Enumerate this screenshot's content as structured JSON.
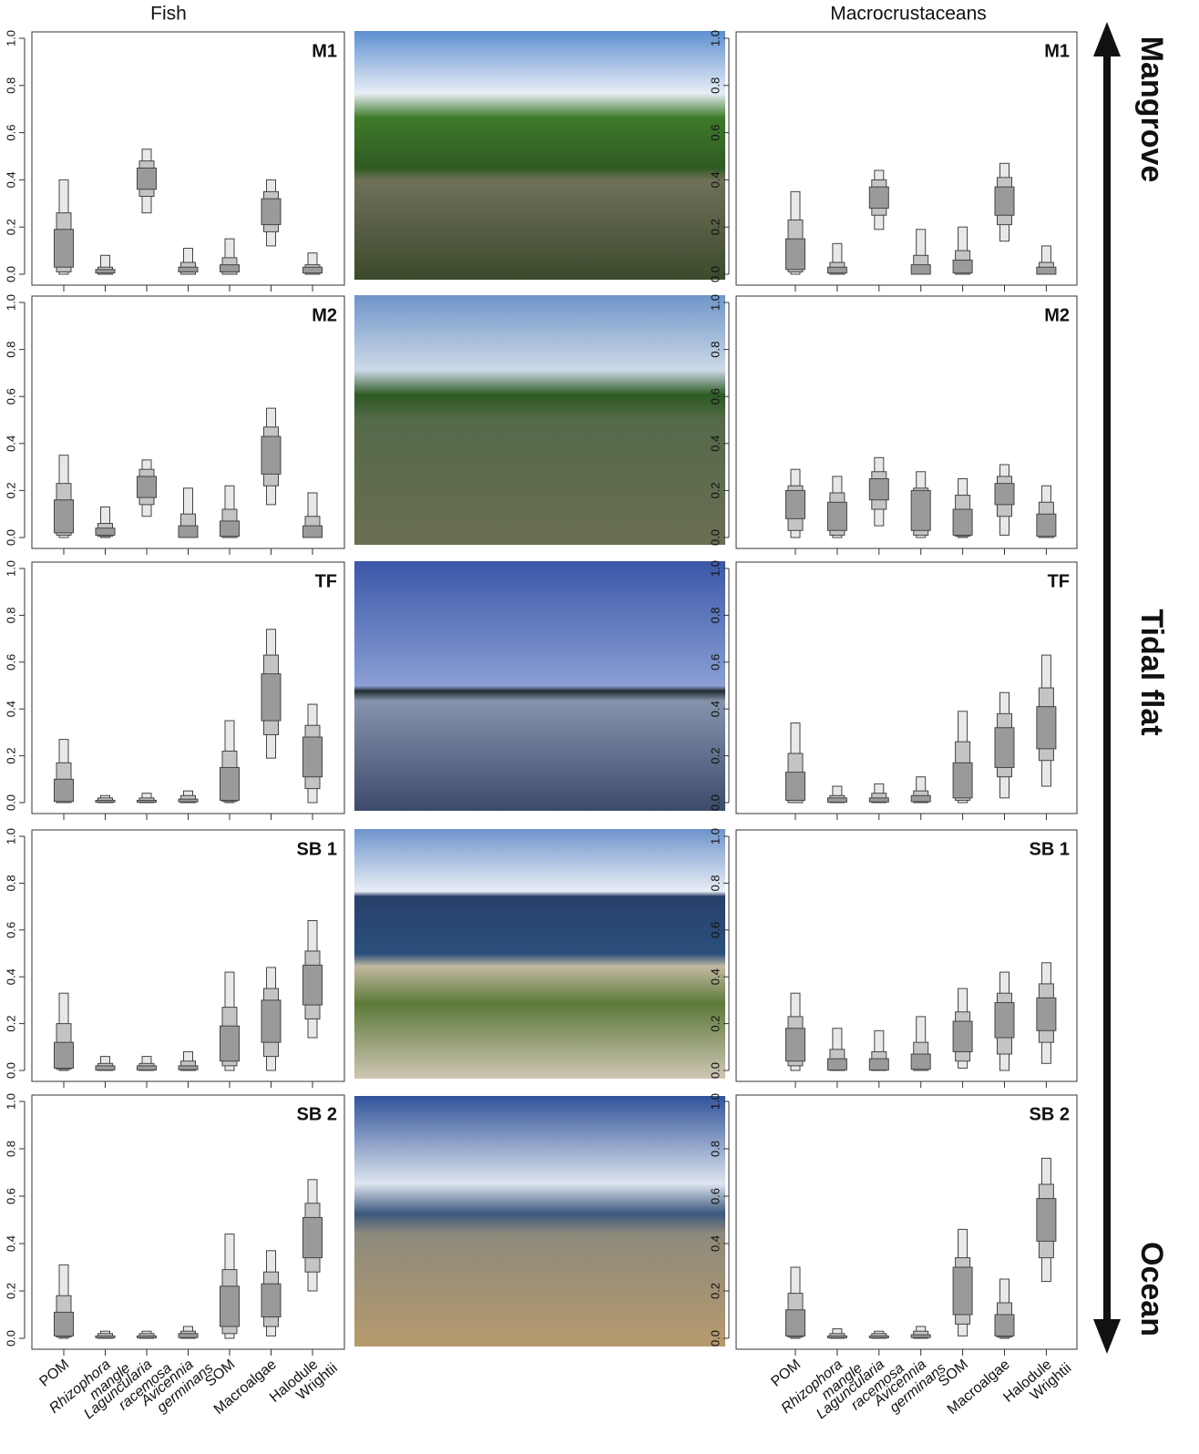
{
  "columns": [
    "Fish",
    "Macrocrustaceans"
  ],
  "gradient_labels": [
    "Mangrove",
    "Tidal flat",
    "Ocean"
  ],
  "categories": [
    [
      "POM"
    ],
    [
      "Rhizophora",
      "mangle"
    ],
    [
      "Laguncularia",
      "racemosa"
    ],
    [
      "Avicennia",
      "germinans"
    ],
    [
      "SOM"
    ],
    [
      "Macroalgae"
    ],
    [
      "Halodule",
      "Wrightii"
    ]
  ],
  "italic": [
    false,
    true,
    true,
    true,
    false,
    false,
    false
  ],
  "colors": [
    "#e8e8e8",
    "#c4c4c4",
    "#9a9a9a"
  ],
  "chart_data": [
    {
      "type": "interval",
      "title": "M1",
      "ylim": [
        0,
        1
      ],
      "yticks": [
        {
          "value": 0,
          "label": "0.0"
        },
        0.2,
        0.4,
        0.6,
        0.8,
        {
          "value": 1,
          "label": "1.0"
        }
      ],
      "intervals": [
        [
          0,
          0.01,
          0.03,
          0.19,
          0.26,
          0.4
        ],
        [
          0,
          0,
          0.005,
          0.02,
          0.03,
          0.08
        ],
        [
          0.26,
          0.33,
          0.36,
          0.45,
          0.48,
          0.53
        ],
        [
          0,
          0,
          0.01,
          0.03,
          0.05,
          0.11
        ],
        [
          0,
          0,
          0.01,
          0.04,
          0.07,
          0.15
        ],
        [
          0.12,
          0.18,
          0.21,
          0.32,
          0.35,
          0.4
        ],
        [
          0,
          0,
          0.005,
          0.03,
          0.04,
          0.09
        ]
      ]
    },
    {
      "type": "interval",
      "title": "M2",
      "ylim": [
        0,
        1
      ],
      "yticks": [
        {
          "value": 0,
          "label": "0.0"
        },
        0.2,
        0.4,
        0.6,
        0.8,
        {
          "value": 1,
          "label": "1.0"
        }
      ],
      "intervals": [
        [
          0,
          0.01,
          0.02,
          0.16,
          0.23,
          0.35
        ],
        [
          0,
          0.005,
          0.01,
          0.04,
          0.06,
          0.13
        ],
        [
          0.09,
          0.14,
          0.17,
          0.26,
          0.29,
          0.33
        ],
        [
          0,
          0,
          0,
          0.05,
          0.1,
          0.21
        ],
        [
          0,
          0,
          0.005,
          0.07,
          0.12,
          0.22
        ],
        [
          0.14,
          0.22,
          0.27,
          0.43,
          0.47,
          0.55
        ],
        [
          0,
          0,
          0,
          0.05,
          0.09,
          0.19
        ]
      ]
    },
    {
      "type": "interval",
      "title": "TF",
      "ylim": [
        0,
        1
      ],
      "yticks": [
        {
          "value": 0,
          "label": "0.0"
        },
        0.2,
        0.4,
        0.6,
        0.8,
        {
          "value": 1,
          "label": "1.0"
        }
      ],
      "intervals": [
        [
          0,
          0,
          0.005,
          0.1,
          0.17,
          0.27
        ],
        [
          0,
          0,
          0.002,
          0.01,
          0.02,
          0.03
        ],
        [
          0,
          0,
          0.002,
          0.01,
          0.02,
          0.04
        ],
        [
          0,
          0,
          0.003,
          0.015,
          0.03,
          0.05
        ],
        [
          0,
          0.005,
          0.01,
          0.15,
          0.22,
          0.35
        ],
        [
          0.19,
          0.29,
          0.35,
          0.55,
          0.63,
          0.74
        ],
        [
          0,
          0.06,
          0.11,
          0.28,
          0.33,
          0.42
        ]
      ]
    },
    {
      "type": "interval",
      "title": "SB 1",
      "ylim": [
        0,
        1
      ],
      "yticks": [
        {
          "value": 0,
          "label": "0.0"
        },
        0.2,
        0.4,
        0.6,
        0.8,
        {
          "value": 1,
          "label": "1.0"
        }
      ],
      "intervals": [
        [
          0,
          0.005,
          0.01,
          0.12,
          0.2,
          0.33
        ],
        [
          0,
          0,
          0.002,
          0.02,
          0.03,
          0.06
        ],
        [
          0,
          0,
          0.002,
          0.02,
          0.03,
          0.06
        ],
        [
          0,
          0,
          0.003,
          0.02,
          0.04,
          0.08
        ],
        [
          0,
          0.02,
          0.04,
          0.19,
          0.27,
          0.42
        ],
        [
          0,
          0.06,
          0.12,
          0.3,
          0.35,
          0.44
        ],
        [
          0.14,
          0.22,
          0.28,
          0.45,
          0.51,
          0.64
        ]
      ]
    },
    {
      "type": "interval",
      "title": "SB 2",
      "ylim": [
        0,
        1
      ],
      "yticks": [
        {
          "value": 0,
          "label": "0.0"
        },
        0.2,
        0.4,
        0.6,
        0.8,
        {
          "value": 1,
          "label": "1.0"
        }
      ],
      "intervals": [
        [
          0,
          0.005,
          0.01,
          0.11,
          0.18,
          0.31
        ],
        [
          0,
          0,
          0.002,
          0.01,
          0.02,
          0.03
        ],
        [
          0,
          0,
          0.002,
          0.01,
          0.02,
          0.03
        ],
        [
          0,
          0,
          0.003,
          0.02,
          0.03,
          0.05
        ],
        [
          0,
          0.02,
          0.05,
          0.22,
          0.29,
          0.44
        ],
        [
          0.01,
          0.05,
          0.09,
          0.23,
          0.28,
          0.37
        ],
        [
          0.2,
          0.28,
          0.34,
          0.51,
          0.57,
          0.67
        ]
      ]
    },
    {
      "type": "interval",
      "title": "M1",
      "ylim": [
        0,
        1
      ],
      "yticks": [
        {
          "value": 0,
          "label": "0.0"
        },
        0.2,
        0.4,
        0.6,
        0.8,
        {
          "value": 1,
          "label": "1.0"
        }
      ],
      "intervals": [
        [
          0,
          0.01,
          0.02,
          0.15,
          0.23,
          0.35
        ],
        [
          0,
          0,
          0.005,
          0.03,
          0.05,
          0.13
        ],
        [
          0.19,
          0.25,
          0.28,
          0.37,
          0.4,
          0.44
        ],
        [
          0,
          0,
          0,
          0.04,
          0.08,
          0.19
        ],
        [
          0,
          0,
          0.005,
          0.06,
          0.1,
          0.2
        ],
        [
          0.14,
          0.21,
          0.25,
          0.37,
          0.41,
          0.47
        ],
        [
          0,
          0,
          0,
          0.03,
          0.05,
          0.12
        ]
      ]
    },
    {
      "type": "interval",
      "title": "M2",
      "ylim": [
        0,
        1
      ],
      "yticks": [
        {
          "value": 0,
          "label": "0.0"
        },
        0.2,
        0.4,
        0.6,
        0.8,
        {
          "value": 1,
          "label": "1.0"
        }
      ],
      "intervals": [
        [
          0,
          0.03,
          0.08,
          0.2,
          0.22,
          0.29
        ],
        [
          0,
          0.01,
          0.03,
          0.15,
          0.19,
          0.26
        ],
        [
          0.05,
          0.12,
          0.16,
          0.25,
          0.28,
          0.34
        ],
        [
          0,
          0.01,
          0.03,
          0.2,
          0.21,
          0.28
        ],
        [
          0,
          0.005,
          0.01,
          0.12,
          0.18,
          0.25
        ],
        [
          0.01,
          0.09,
          0.14,
          0.23,
          0.26,
          0.31
        ],
        [
          0,
          0,
          0.005,
          0.1,
          0.15,
          0.22
        ]
      ]
    },
    {
      "type": "interval",
      "title": "TF",
      "ylim": [
        0,
        1
      ],
      "yticks": [
        {
          "value": 0,
          "label": "0.0"
        },
        0.2,
        0.4,
        0.6,
        0.8,
        {
          "value": 1,
          "label": "1.0"
        }
      ],
      "intervals": [
        [
          0,
          0,
          0.01,
          0.13,
          0.21,
          0.34
        ],
        [
          0,
          0,
          0.002,
          0.02,
          0.03,
          0.07
        ],
        [
          0,
          0,
          0.003,
          0.02,
          0.04,
          0.08
        ],
        [
          0,
          0,
          0.004,
          0.03,
          0.05,
          0.11
        ],
        [
          0,
          0.01,
          0.02,
          0.17,
          0.26,
          0.39
        ],
        [
          0.02,
          0.11,
          0.15,
          0.32,
          0.38,
          0.47
        ],
        [
          0.07,
          0.18,
          0.23,
          0.41,
          0.49,
          0.63
        ]
      ]
    },
    {
      "type": "interval",
      "title": "SB 1",
      "ylim": [
        0,
        1
      ],
      "yticks": [
        {
          "value": 0,
          "label": "0.0"
        },
        0.2,
        0.4,
        0.6,
        0.8,
        {
          "value": 1,
          "label": "1.0"
        }
      ],
      "intervals": [
        [
          0,
          0.02,
          0.04,
          0.18,
          0.23,
          0.33
        ],
        [
          0,
          0,
          0.002,
          0.05,
          0.09,
          0.18
        ],
        [
          0,
          0,
          0.002,
          0.05,
          0.08,
          0.17
        ],
        [
          0,
          0,
          0.005,
          0.07,
          0.12,
          0.23
        ],
        [
          0.01,
          0.04,
          0.08,
          0.21,
          0.25,
          0.35
        ],
        [
          0,
          0.07,
          0.14,
          0.29,
          0.33,
          0.42
        ],
        [
          0.03,
          0.12,
          0.17,
          0.31,
          0.37,
          0.46
        ]
      ]
    },
    {
      "type": "interval",
      "title": "SB 2",
      "ylim": [
        0,
        1
      ],
      "yticks": [
        {
          "value": 0,
          "label": "0.0"
        },
        0.2,
        0.4,
        0.6,
        0.8,
        {
          "value": 1,
          "label": "1.0"
        }
      ],
      "intervals": [
        [
          0,
          0.005,
          0.01,
          0.12,
          0.19,
          0.3
        ],
        [
          0,
          0,
          0.002,
          0.01,
          0.02,
          0.04
        ],
        [
          0,
          0,
          0.002,
          0.01,
          0.02,
          0.03
        ],
        [
          0,
          0,
          0.003,
          0.015,
          0.03,
          0.05
        ],
        [
          0.01,
          0.06,
          0.1,
          0.3,
          0.34,
          0.46
        ],
        [
          0,
          0.005,
          0.01,
          0.1,
          0.15,
          0.25
        ],
        [
          0.24,
          0.34,
          0.41,
          0.59,
          0.65,
          0.76
        ]
      ]
    }
  ]
}
